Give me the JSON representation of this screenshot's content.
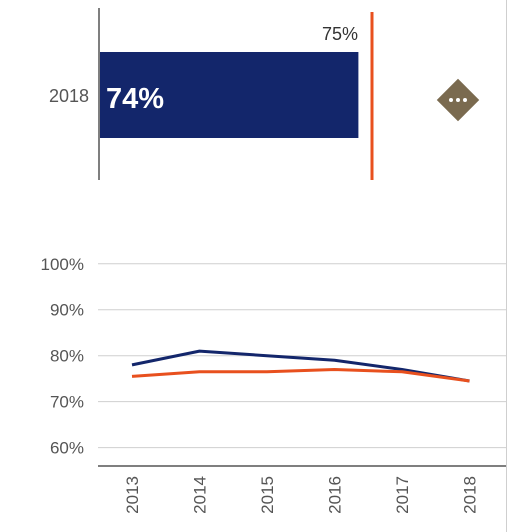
{
  "colors": {
    "primary": "#13266b",
    "target": "#e8501e",
    "axis": "#555555",
    "grid": "#cfcfcf",
    "menu": "#7a6a4f"
  },
  "more_button": {
    "icon": "more-horizontal-icon"
  },
  "chart_data": [
    {
      "type": "bar",
      "orientation": "horizontal",
      "categories": [
        "2018"
      ],
      "values": [
        74
      ],
      "value_labels": [
        "74%"
      ],
      "target": {
        "value": 75,
        "label": "75%"
      },
      "xlim": [
        55,
        80
      ]
    },
    {
      "type": "line",
      "x": [
        "2013",
        "2014",
        "2015",
        "2016",
        "2017",
        "2018"
      ],
      "series": [
        {
          "color": "#13266b",
          "values": [
            78,
            81,
            80,
            79,
            77,
            74.5
          ]
        },
        {
          "color": "#e8501e",
          "values": [
            75.5,
            76.5,
            76.5,
            77,
            76.5,
            74.5
          ]
        }
      ],
      "yticks": [
        "60%",
        "70%",
        "80%",
        "90%",
        "100%"
      ],
      "ytick_values": [
        60,
        70,
        80,
        90,
        100
      ],
      "ylim": [
        56,
        103
      ],
      "grid": true
    }
  ]
}
